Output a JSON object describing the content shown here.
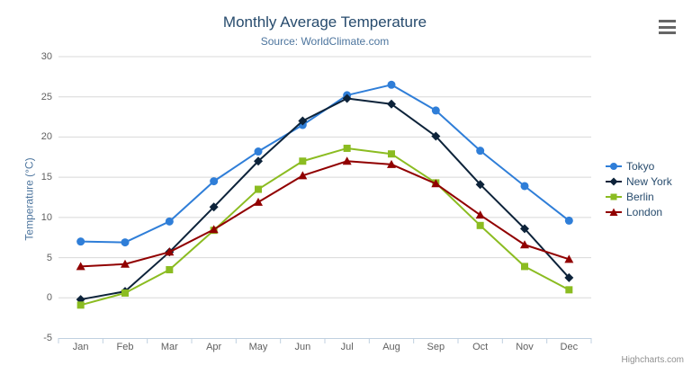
{
  "chart_data": {
    "type": "line",
    "title": "Monthly Average Temperature",
    "subtitle": "Source: WorldClimate.com",
    "ylabel": "Temperature (°C)",
    "xlabel": "",
    "categories": [
      "Jan",
      "Feb",
      "Mar",
      "Apr",
      "May",
      "Jun",
      "Jul",
      "Aug",
      "Sep",
      "Oct",
      "Nov",
      "Dec"
    ],
    "ylim": [
      -5,
      30
    ],
    "ytick_step": 5,
    "grid": true,
    "legend_position": "right-middle",
    "series": [
      {
        "name": "Tokyo",
        "color": "#2f7ed8",
        "marker": "circle",
        "values": [
          7.0,
          6.9,
          9.5,
          14.5,
          18.2,
          21.5,
          25.2,
          26.5,
          23.3,
          18.3,
          13.9,
          9.6
        ]
      },
      {
        "name": "New York",
        "color": "#0d233a",
        "marker": "diamond",
        "values": [
          -0.2,
          0.8,
          5.7,
          11.3,
          17.0,
          22.0,
          24.8,
          24.1,
          20.1,
          14.1,
          8.6,
          2.5
        ]
      },
      {
        "name": "Berlin",
        "color": "#8bbc21",
        "marker": "square",
        "values": [
          -0.9,
          0.6,
          3.5,
          8.4,
          13.5,
          17.0,
          18.6,
          17.9,
          14.3,
          9.0,
          3.9,
          1.0
        ]
      },
      {
        "name": "London",
        "color": "#910000",
        "marker": "triangle",
        "values": [
          3.9,
          4.2,
          5.7,
          8.5,
          11.9,
          15.2,
          17.0,
          16.6,
          14.2,
          10.3,
          6.6,
          4.8
        ]
      }
    ],
    "credits": "Highcharts.com"
  },
  "colors": {
    "title": "#274b6d",
    "subtitle": "#4d759e",
    "axis_title": "#4d759e",
    "axis_label": "#606060",
    "grid_line": "#d8d8d8",
    "axis_line": "#c0d0e0",
    "credits": "#909090",
    "menu_icon": "#666666",
    "background": "#ffffff"
  },
  "icons": {
    "context_menu": "hamburger-icon"
  }
}
